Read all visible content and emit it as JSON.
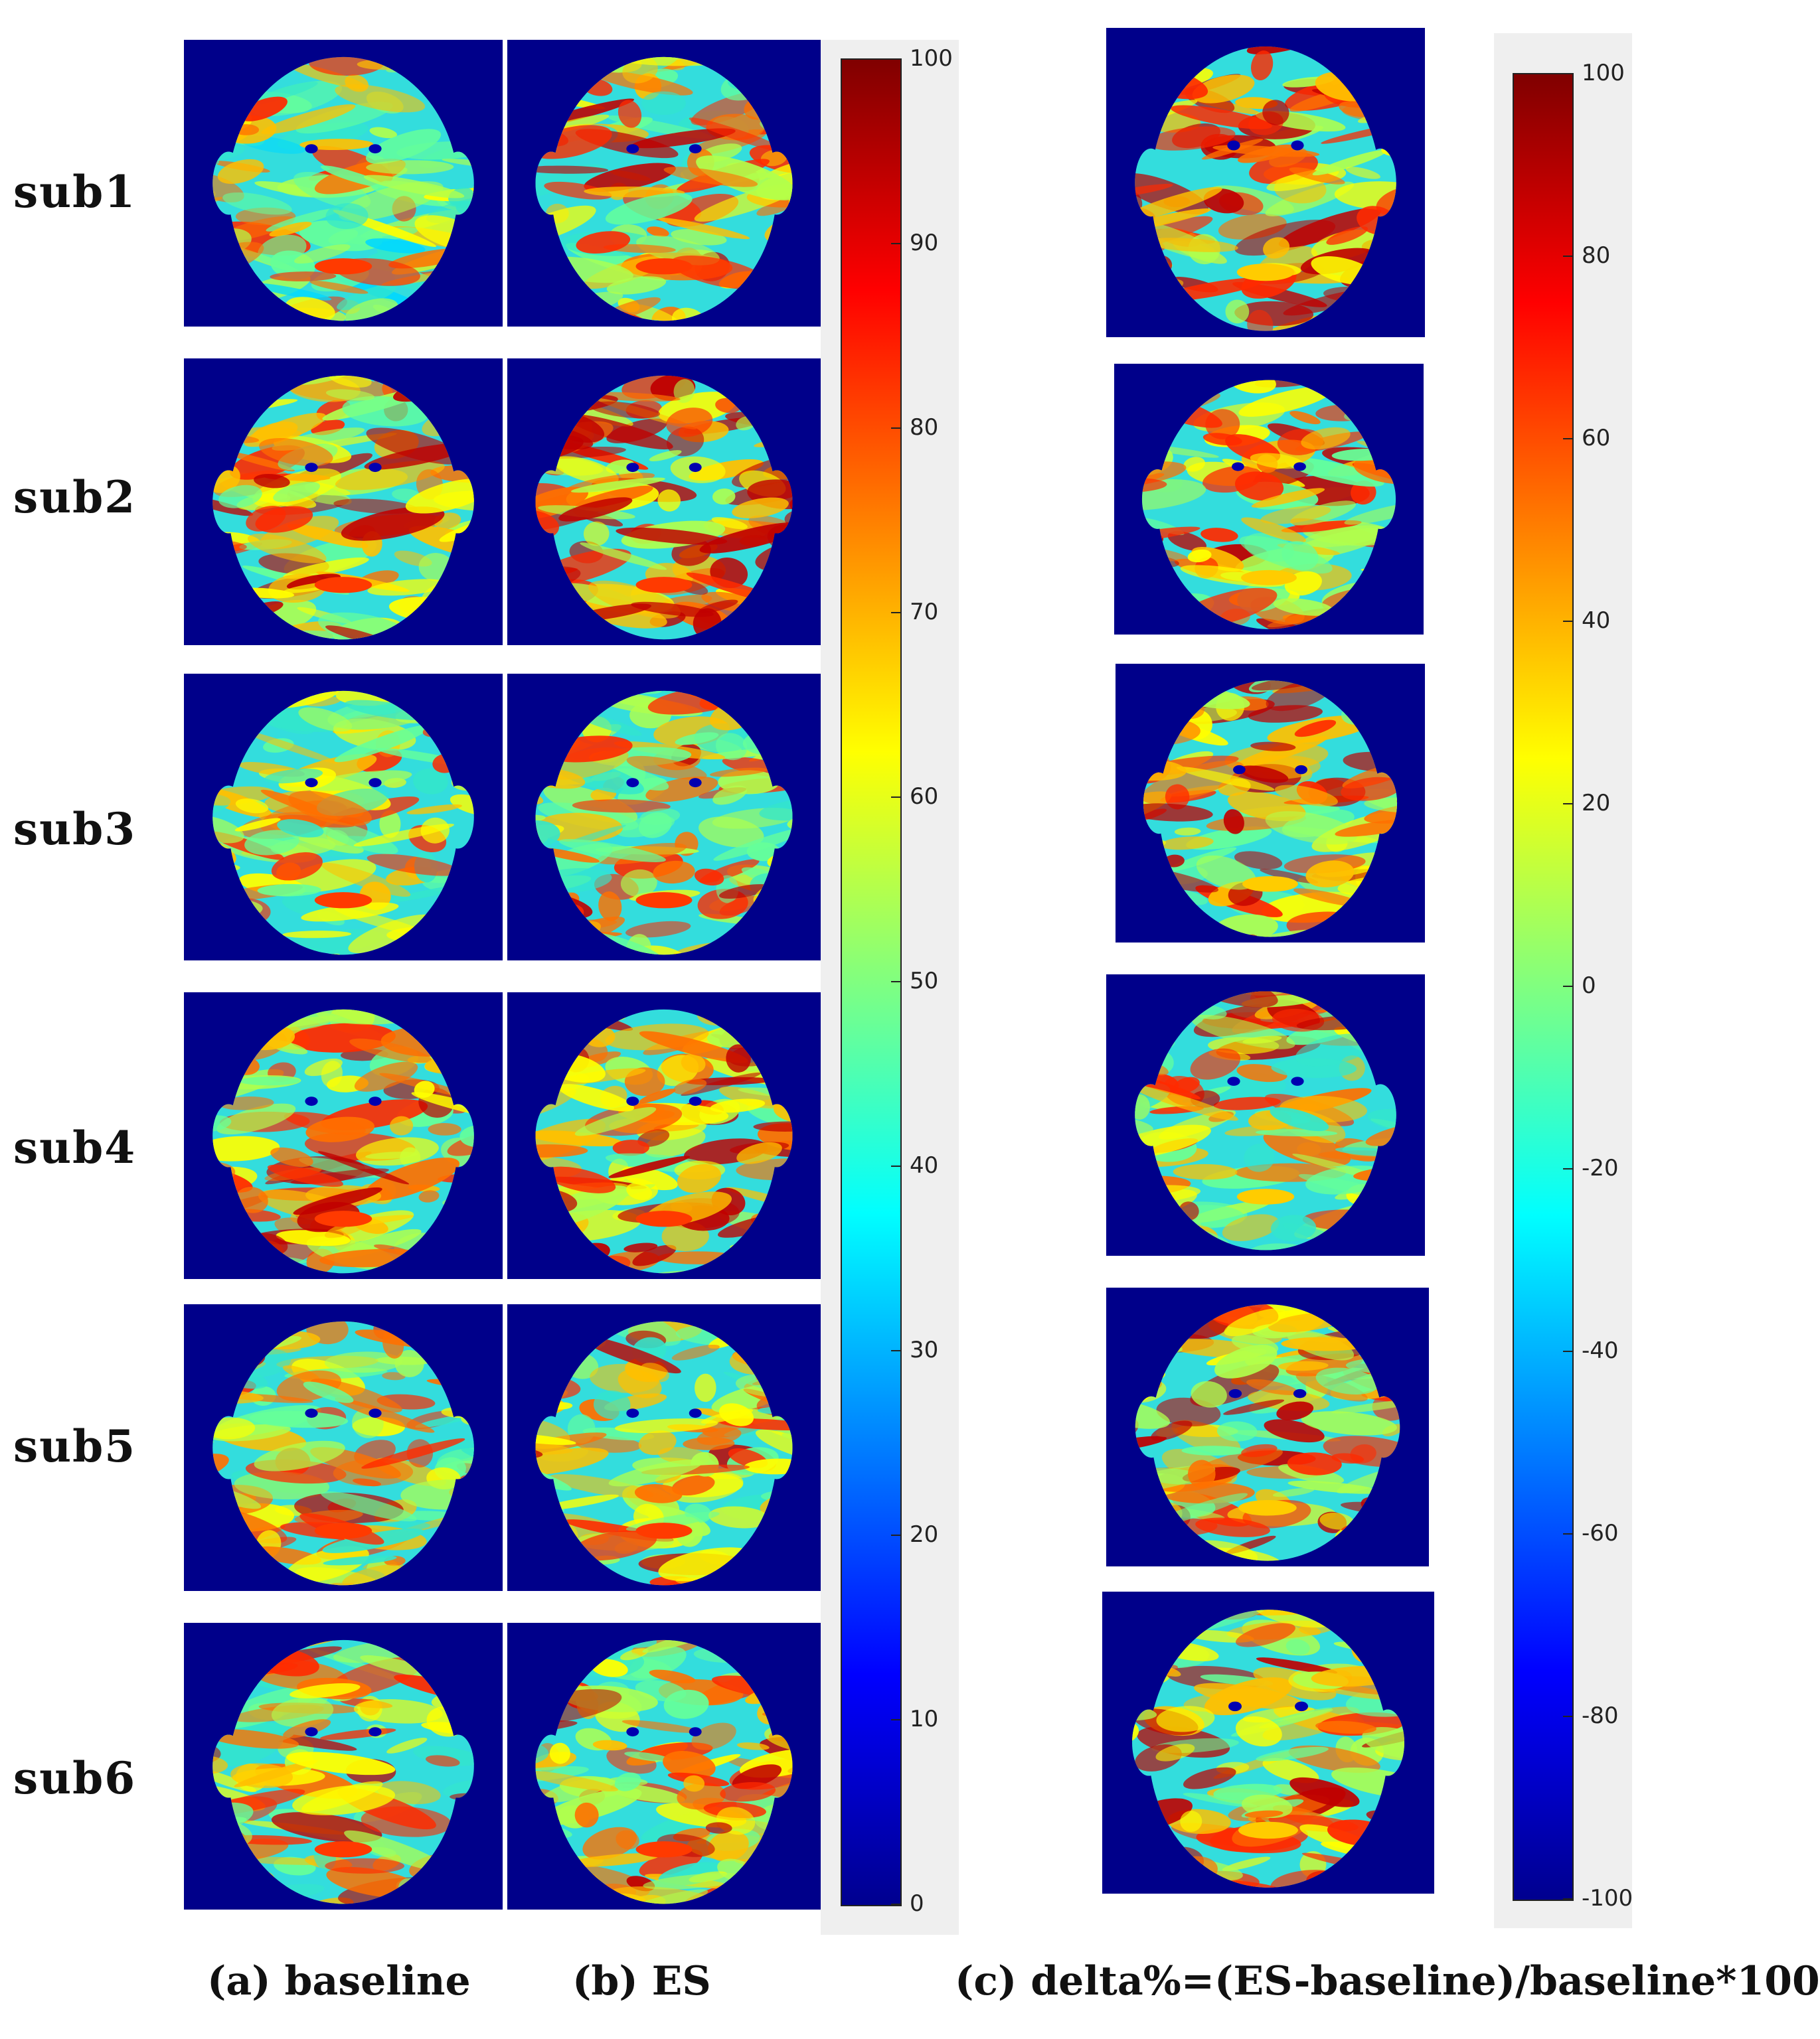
{
  "rows": [
    {
      "label": "sub1"
    },
    {
      "label": "sub2"
    },
    {
      "label": "sub3"
    },
    {
      "label": "sub4"
    },
    {
      "label": "sub5"
    },
    {
      "label": "sub6"
    }
  ],
  "colorbar_left": {
    "min": 0,
    "max": 100,
    "ticks": [
      "100",
      "90",
      "80",
      "70",
      "60",
      "50",
      "40",
      "30",
      "20",
      "10",
      "0"
    ]
  },
  "colorbar_right": {
    "min": -100,
    "max": 100,
    "ticks": [
      "100",
      "80",
      "60",
      "40",
      "20",
      "0",
      "-20",
      "-40",
      "-60",
      "-80",
      "-100"
    ]
  },
  "captions": {
    "a": "(a) baseline",
    "b": "(b) ES",
    "c": "(c) delta%=(ES-baseline)/baseline*100"
  },
  "colors": {
    "background": "#00008a",
    "jet": [
      "#00008f",
      "#0000ff",
      "#0080ff",
      "#00ffff",
      "#80ff80",
      "#ffff00",
      "#ff8000",
      "#ff0000",
      "#800000"
    ]
  }
}
